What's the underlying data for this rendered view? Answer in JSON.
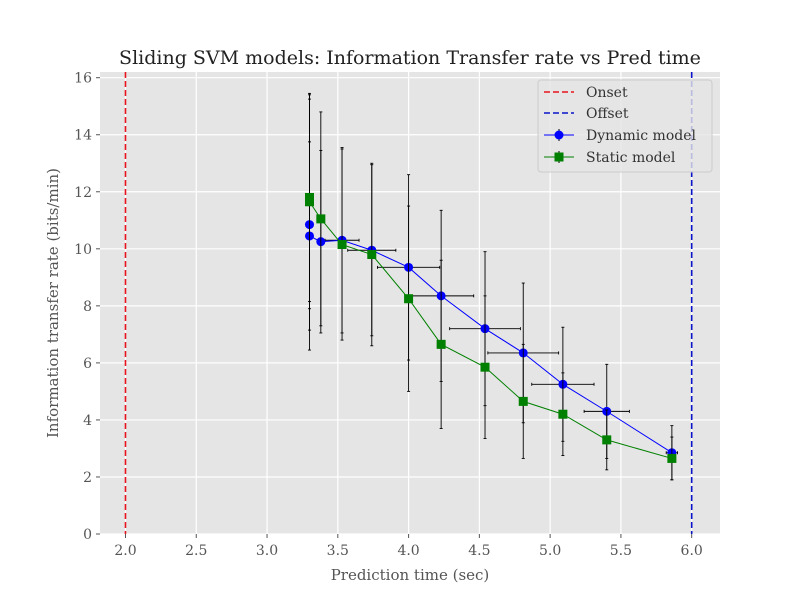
{
  "chart_data": {
    "type": "line",
    "title": "Sliding SVM models: Information Transfer rate vs Pred time",
    "xlabel": "Prediction time (sec)",
    "ylabel": "Information transfer rate (bits/min)",
    "xlim": [
      1.82,
      6.2
    ],
    "ylim": [
      0,
      16.2
    ],
    "xticks": [
      2.0,
      2.5,
      3.0,
      3.5,
      4.0,
      4.5,
      5.0,
      5.5,
      6.0
    ],
    "xtick_labels": [
      "2.0",
      "2.5",
      "3.0",
      "3.5",
      "4.0",
      "4.5",
      "5.0",
      "5.5",
      "6.0"
    ],
    "yticks": [
      0,
      2,
      4,
      6,
      8,
      10,
      12,
      14,
      16
    ],
    "ytick_labels": [
      "0",
      "2",
      "4",
      "6",
      "8",
      "10",
      "12",
      "14",
      "16"
    ],
    "grid": true,
    "legend_position": "top-right",
    "vlines": [
      {
        "name": "Onset",
        "x": 2.0,
        "color": "#e8141e",
        "style": "dashed"
      },
      {
        "name": "Offset",
        "x": 6.0,
        "color": "#0a14c8",
        "style": "dashed"
      }
    ],
    "series": [
      {
        "name": "Dynamic model",
        "color": "#0000ff",
        "marker": "circle",
        "points": [
          {
            "x": 3.3,
            "y": 10.85,
            "yerr": 4.4,
            "xerr": 0.0
          },
          {
            "x": 3.3,
            "y": 10.45,
            "yerr": 3.3,
            "xerr": 0.0
          },
          {
            "x": 3.38,
            "y": 10.25,
            "yerr": 3.2,
            "xerr": 0.0
          },
          {
            "x": 3.53,
            "y": 10.3,
            "yerr": 3.25,
            "xerr": 0.12
          },
          {
            "x": 3.74,
            "y": 9.95,
            "yerr": 3.0,
            "xerr": 0.17
          },
          {
            "x": 4.0,
            "y": 9.35,
            "yerr": 3.25,
            "xerr": 0.22
          },
          {
            "x": 4.23,
            "y": 8.35,
            "yerr": 3.0,
            "xerr": 0.23
          },
          {
            "x": 4.54,
            "y": 7.2,
            "yerr": 2.7,
            "xerr": 0.25
          },
          {
            "x": 4.81,
            "y": 6.35,
            "yerr": 2.45,
            "xerr": 0.25
          },
          {
            "x": 5.09,
            "y": 5.25,
            "yerr": 2.0,
            "xerr": 0.22
          },
          {
            "x": 5.4,
            "y": 4.3,
            "yerr": 1.65,
            "xerr": 0.16
          },
          {
            "x": 5.86,
            "y": 2.85,
            "yerr": 0.95,
            "xerr": 0.04
          }
        ]
      },
      {
        "name": "Static model",
        "color": "#008000",
        "marker": "square",
        "points": [
          {
            "x": 3.3,
            "y": 11.8,
            "yerr": 3.65,
            "xerr": 0.0
          },
          {
            "x": 3.3,
            "y": 11.65,
            "yerr": 3.75,
            "xerr": 0.0
          },
          {
            "x": 3.38,
            "y": 11.05,
            "yerr": 3.75,
            "xerr": 0.0
          },
          {
            "x": 3.53,
            "y": 10.15,
            "yerr": 3.35,
            "xerr": 0.0
          },
          {
            "x": 3.74,
            "y": 9.8,
            "yerr": 3.2,
            "xerr": 0.0
          },
          {
            "x": 4.0,
            "y": 8.25,
            "yerr": 3.25,
            "xerr": 0.0
          },
          {
            "x": 4.23,
            "y": 6.65,
            "yerr": 2.95,
            "xerr": 0.0
          },
          {
            "x": 4.54,
            "y": 5.85,
            "yerr": 2.5,
            "xerr": 0.0
          },
          {
            "x": 4.81,
            "y": 4.65,
            "yerr": 2.0,
            "xerr": 0.0
          },
          {
            "x": 5.09,
            "y": 4.2,
            "yerr": 1.45,
            "xerr": 0.0
          },
          {
            "x": 5.4,
            "y": 3.3,
            "yerr": 1.05,
            "xerr": 0.0
          },
          {
            "x": 5.86,
            "y": 2.65,
            "yerr": 0.75,
            "xerr": 0.0
          }
        ]
      }
    ]
  }
}
